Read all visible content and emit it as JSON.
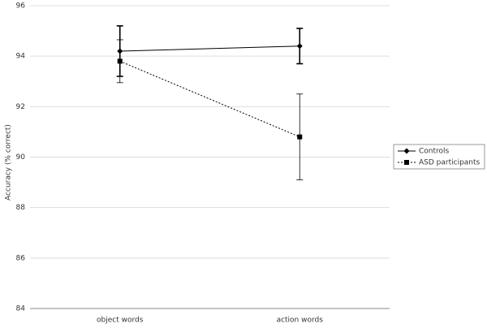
{
  "chart_data": {
    "type": "line",
    "y_label": "Accuracy (% correct)",
    "categories": [
      "object words",
      "action words"
    ],
    "series": [
      {
        "name": "Controls",
        "color": "#000000",
        "marker": "diamond",
        "dash": "solid",
        "values": [
          94.2,
          94.4
        ],
        "errors": [
          1.0,
          0.7
        ]
      },
      {
        "name": "ASD participants",
        "color": "#000000",
        "marker": "square",
        "dash": "dotted",
        "values": [
          93.8,
          90.8
        ],
        "errors": [
          0.85,
          1.7
        ]
      }
    ],
    "ylim": [
      84,
      96
    ],
    "yticks": [
      84,
      86,
      88,
      90,
      92,
      94,
      96
    ],
    "grid": true,
    "legend": "right"
  }
}
